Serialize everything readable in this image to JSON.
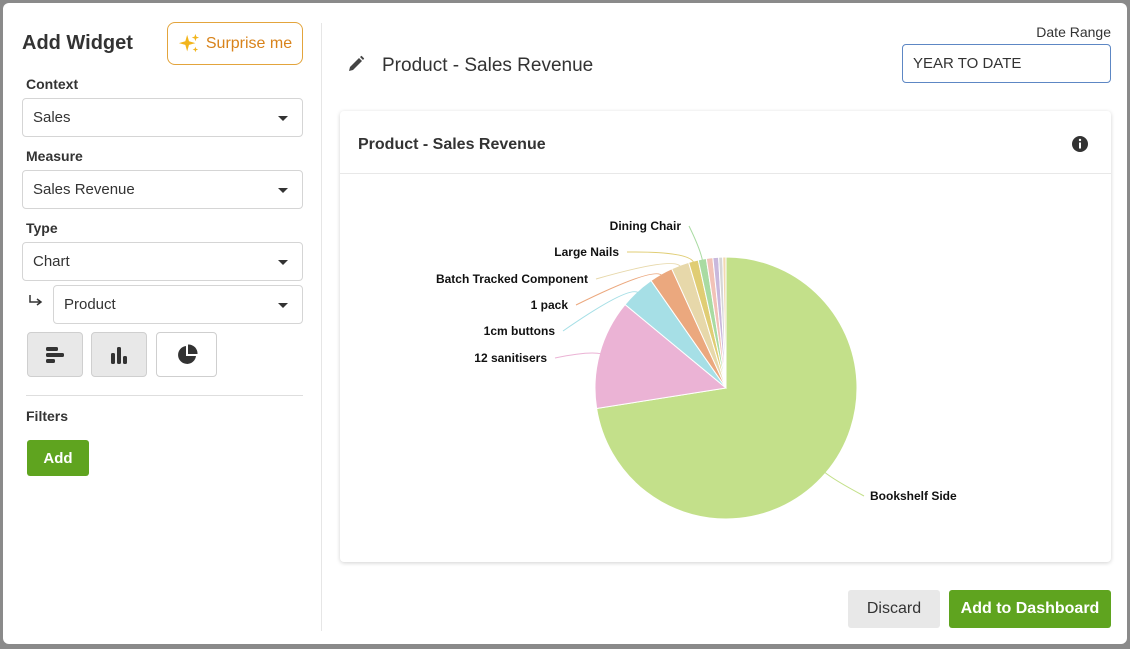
{
  "panel": {
    "title": "Add Widget",
    "surprise_label": "Surprise me",
    "context_label": "Context",
    "context_value": "Sales",
    "measure_label": "Measure",
    "measure_value": "Sales Revenue",
    "type_label": "Type",
    "type_value": "Chart",
    "group_value": "Product",
    "filters_label": "Filters",
    "add_label": "Add"
  },
  "header": {
    "title": "Product - Sales Revenue",
    "date_range_label": "Date Range",
    "date_range_value": "YEAR TO DATE"
  },
  "card": {
    "title": "Product - Sales Revenue"
  },
  "footer": {
    "discard_label": "Discard",
    "add_dashboard_label": "Add to Dashboard"
  },
  "chart_data": {
    "type": "pie",
    "slices": [
      {
        "label": "Bookshelf Side",
        "value": 72.5,
        "color": "#c3e08a"
      },
      {
        "label": "12 sanitisers",
        "value": 13.5,
        "color": "#ebb3d5"
      },
      {
        "label": "1cm buttons",
        "value": 4.3,
        "color": "#a6dfe6"
      },
      {
        "label": "1 pack",
        "value": 2.9,
        "color": "#eba87e"
      },
      {
        "label": "Batch Tracked Component",
        "value": 2.2,
        "color": "#e7d8aa"
      },
      {
        "label": "Large Nails",
        "value": 1.2,
        "color": "#e0cd74"
      },
      {
        "label": "Dining Chair",
        "value": 1.0,
        "color": "#a9dba2"
      },
      {
        "label": "",
        "value": 0.8,
        "color": "#f2c2b7"
      },
      {
        "label": "",
        "value": 0.7,
        "color": "#c9b8dc"
      },
      {
        "label": "",
        "value": 0.5,
        "color": "#d6d6d6"
      },
      {
        "label": "",
        "value": 0.4,
        "color": "#f3d9b0"
      }
    ]
  }
}
